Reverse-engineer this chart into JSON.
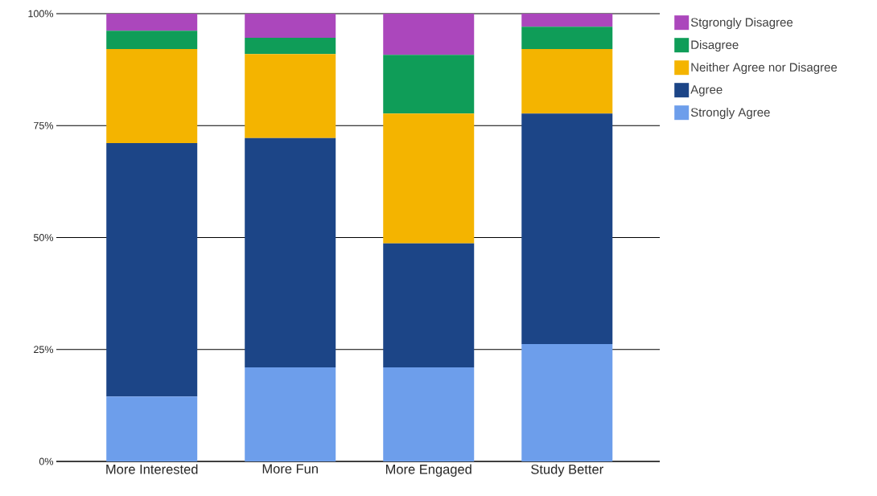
{
  "chart_data": {
    "type": "bar",
    "stacked": true,
    "categories": [
      "More Interested",
      "More Fun",
      "More Engaged",
      "Study Better"
    ],
    "series": [
      {
        "name": "Strongly Agree",
        "color": "#6d9eeb",
        "values": [
          14.5,
          21.0,
          21.0,
          26.2
        ]
      },
      {
        "name": "Agree",
        "color": "#1c4587",
        "values": [
          56.6,
          51.2,
          27.7,
          51.5
        ]
      },
      {
        "name": "Neither Agree nor Disagree",
        "color": "#f4b400",
        "values": [
          21.0,
          18.8,
          29.0,
          14.4
        ]
      },
      {
        "name": "Disagree",
        "color": "#0f9d58",
        "values": [
          4.1,
          3.6,
          13.1,
          5.0
        ]
      },
      {
        "name": "Stgrongly Disagree",
        "color": "#ab47bc",
        "values": [
          3.8,
          5.4,
          9.2,
          2.9
        ]
      }
    ],
    "ylim": [
      0,
      100
    ],
    "yticks": [
      {
        "value": 0,
        "label": "0%"
      },
      {
        "value": 25,
        "label": "25%"
      },
      {
        "value": 50,
        "label": "50%"
      },
      {
        "value": 75,
        "label": "75%"
      },
      {
        "value": 100,
        "label": "100%"
      }
    ],
    "grid": "y",
    "legend": "top right"
  }
}
